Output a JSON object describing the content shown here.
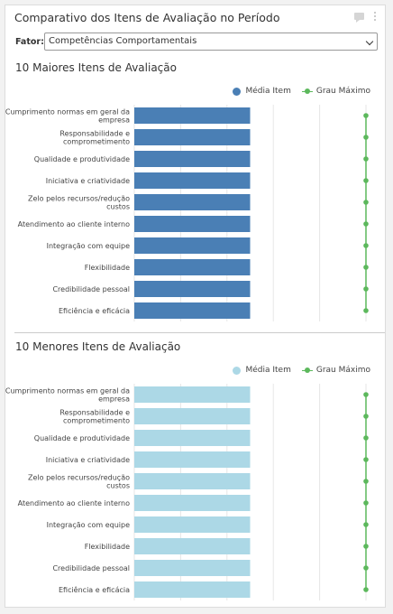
{
  "widget": {
    "title": "Comparativo dos Itens de Avaliação no Período",
    "fator_label": "Fator:",
    "fator_value": "Competências Comportamentais"
  },
  "legend": {
    "media": "Média Item",
    "grau": "Grau Máximo"
  },
  "colors": {
    "top_bar": "#4a7fb5",
    "bottom_bar": "#acd8e6",
    "grau": "#5cb85c",
    "grid": "#e6e6e6"
  },
  "chart_data": [
    {
      "type": "bar",
      "orientation": "horizontal",
      "title": "10 Maiores Itens de Avaliação",
      "categories": [
        [
          "Cumprimento normas em geral da",
          "empresa"
        ],
        [
          "Responsabilidade e",
          "comprometimento"
        ],
        [
          "Qualidade e produtividade"
        ],
        [
          "Iniciativa e criatividade"
        ],
        [
          "Zelo pelos recursos/redução",
          "custos"
        ],
        [
          "Atendimento ao cliente interno"
        ],
        [
          "Integração com equipe"
        ],
        [
          "Flexibilidade"
        ],
        [
          "Credibilidade pessoal"
        ],
        [
          "Eficiência e eficácia"
        ]
      ],
      "series": [
        {
          "name": "Média Item",
          "values": [
            5,
            5,
            5,
            5,
            5,
            5,
            5,
            5,
            5,
            5
          ]
        },
        {
          "name": "Grau Máximo",
          "values": [
            10,
            10,
            10,
            10,
            10,
            10,
            10,
            10,
            10,
            10
          ]
        }
      ],
      "xlim": [
        0,
        10
      ],
      "grid": true,
      "legend_position": "top-right"
    },
    {
      "type": "bar",
      "orientation": "horizontal",
      "title": "10 Menores Itens de Avaliação",
      "categories": [
        [
          "Cumprimento normas em geral da",
          "empresa"
        ],
        [
          "Responsabilidade e",
          "comprometimento"
        ],
        [
          "Qualidade e produtividade"
        ],
        [
          "Iniciativa e criatividade"
        ],
        [
          "Zelo pelos recursos/redução",
          "custos"
        ],
        [
          "Atendimento ao cliente interno"
        ],
        [
          "Integração com equipe"
        ],
        [
          "Flexibilidade"
        ],
        [
          "Credibilidade pessoal"
        ],
        [
          "Eficiência e eficácia"
        ]
      ],
      "series": [
        {
          "name": "Média Item",
          "values": [
            5,
            5,
            5,
            5,
            5,
            5,
            5,
            5,
            5,
            5
          ]
        },
        {
          "name": "Grau Máximo",
          "values": [
            10,
            10,
            10,
            10,
            10,
            10,
            10,
            10,
            10,
            10
          ]
        }
      ],
      "xlim": [
        0,
        10
      ],
      "grid": true,
      "legend_position": "top-right"
    }
  ]
}
